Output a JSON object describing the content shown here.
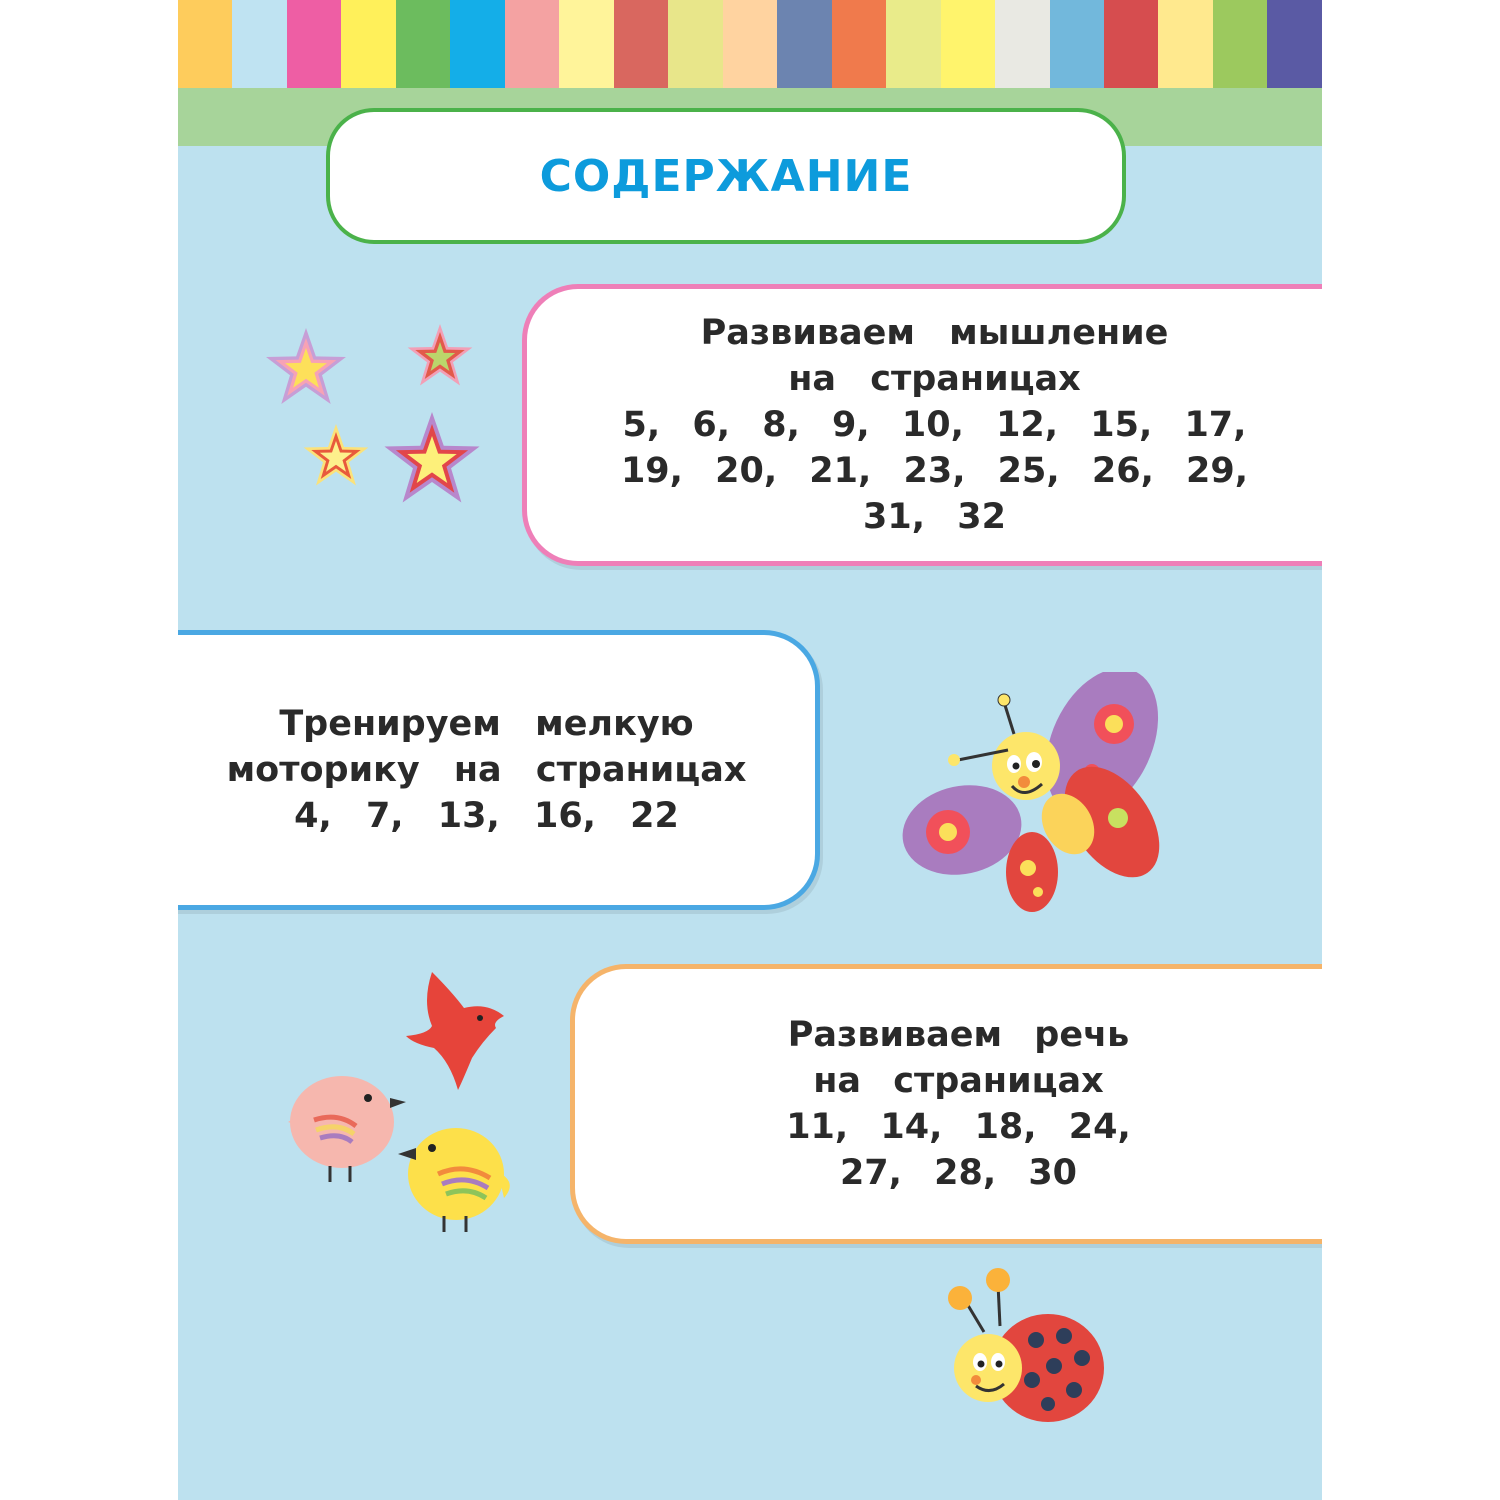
{
  "header": {
    "title": "СОДЕРЖАНИЕ",
    "stripe_colors": [
      "#fecc5c",
      "#bfe3f2",
      "#ee5ea4",
      "#fff05a",
      "#6cbc5e",
      "#14aee8",
      "#f4a2a2",
      "#fff49a",
      "#d9675f",
      "#e8e68a",
      "#ffd3a0",
      "#6c84b0",
      "#f07a4c",
      "#e9eb8a",
      "#fff46c",
      "#e9e9e3",
      "#72b8dc",
      "#d64d4f",
      "#ffe98e",
      "#9cc95e",
      "#5a5aa4"
    ]
  },
  "sections": [
    {
      "name": "thinking",
      "lines": [
        "Развиваем мышление",
        "на страницах",
        "5, 6, 8, 9, 10, 12, 15, 17,",
        "19, 20, 21, 23, 25, 26, 29,",
        "31, 32"
      ],
      "border_color": "#ee7fb8"
    },
    {
      "name": "motor-skills",
      "lines": [
        "Тренируем мелкую",
        "моторику на страницах",
        "4, 7, 13, 16, 22"
      ],
      "border_color": "#4aa8e3"
    },
    {
      "name": "speech",
      "lines": [
        "Развиваем речь",
        "на страницах",
        "11, 14, 18, 24,",
        "27, 28, 30"
      ],
      "border_color": "#f5b46a"
    }
  ],
  "decorations": [
    "stars-icon",
    "butterfly-icon",
    "birds-icon",
    "ladybug-icon"
  ]
}
